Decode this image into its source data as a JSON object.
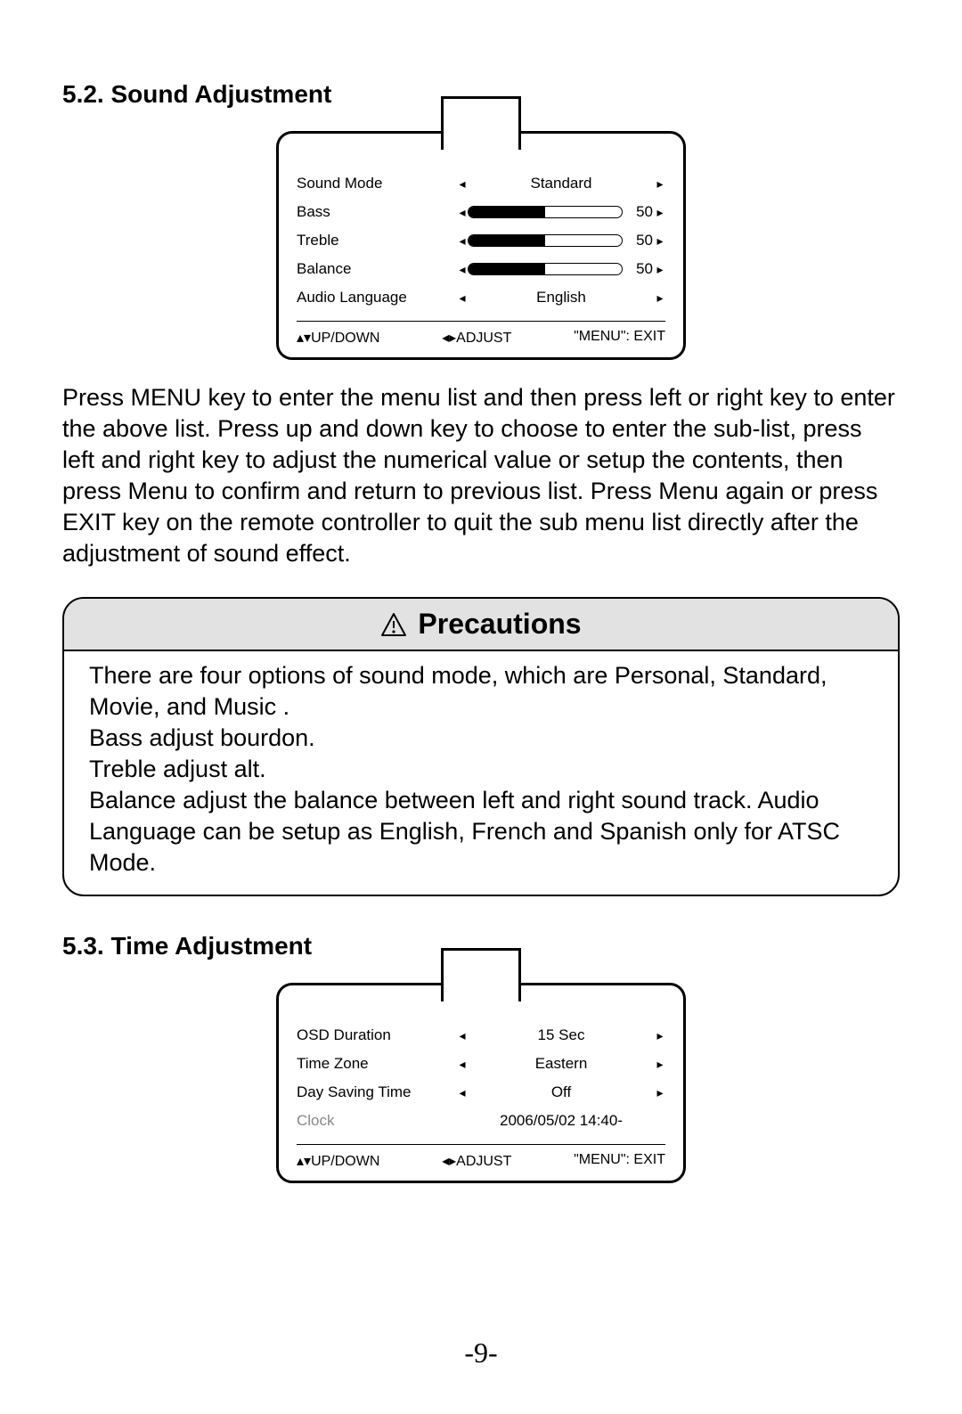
{
  "section1": {
    "heading": "5.2. Sound Adjustment",
    "osd": {
      "rows": [
        {
          "label": "Sound Mode",
          "type": "text",
          "value": "Standard"
        },
        {
          "label": "Bass",
          "type": "slider",
          "value": 50,
          "fill_pct": 50,
          "fill_color": "#000000"
        },
        {
          "label": "Treble",
          "type": "slider",
          "value": 50,
          "fill_pct": 50,
          "fill_color": "#000000"
        },
        {
          "label": "Balance",
          "type": "slider",
          "value": 50,
          "fill_pct": 50,
          "fill_color": "#000000"
        },
        {
          "label": "Audio Language",
          "type": "text",
          "value": "English"
        }
      ],
      "footer": {
        "updown": "▴▾UP/DOWN",
        "adjust": "◂▸ADJUST",
        "exit": "\"MENU\": EXIT"
      }
    },
    "paragraph": "Press MENU key to enter the menu list and then press left or right key to enter the above list. Press up and down key to choose to enter the sub-list, press left and right key to adjust the numerical value or setup the contents, then press Menu to confirm and return to previous list. Press Menu again or press EXIT key on the remote controller to quit the sub menu list directly after the adjustment of sound effect."
  },
  "precautions": {
    "title": "Precautions",
    "body": "There are four options of sound mode, which are Personal, Standard, Movie, and Music .\nBass adjust bourdon.\nTreble adjust alt.\nBalance adjust the balance between left and right sound track. Audio Language can be setup as English, French and Spanish only for  ATSC Mode."
  },
  "section2": {
    "heading": "5.3. Time Adjustment",
    "osd": {
      "rows": [
        {
          "label": "OSD Duration",
          "type": "text",
          "value": "15 Sec"
        },
        {
          "label": "Time Zone",
          "type": "text",
          "value": "Eastern"
        },
        {
          "label": "Day Saving Time",
          "type": "text",
          "value": "Off"
        },
        {
          "label": "Clock",
          "type": "static",
          "value": "2006/05/02 14:40-",
          "grey": true
        }
      ],
      "footer": {
        "updown": "▴▾UP/DOWN",
        "adjust": "◂▸ADJUST",
        "exit": "\"MENU\": EXIT"
      }
    }
  },
  "page_number": "-9-",
  "icons": {
    "left_arrow": "◂",
    "right_arrow": "▸"
  }
}
